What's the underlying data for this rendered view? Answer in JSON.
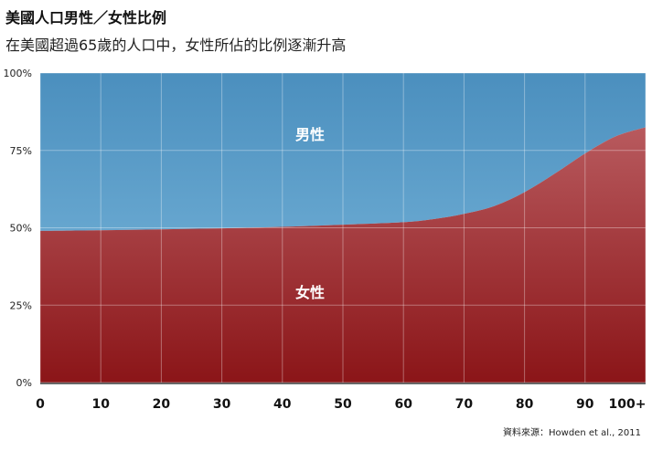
{
  "header": {
    "title": "美國人口男性／女性比例",
    "subtitle": "在美國超過65歲的人口中，女性所佔的比例逐漸升高"
  },
  "source": "資料來源：Howden et al., 2011",
  "colors": {
    "male_top": "#4b8fbe",
    "male_bottom": "#66a6cf",
    "female_top": "#b85a5e",
    "female_bottom": "#8b1518",
    "grid": "#ffffff"
  },
  "chart_data": {
    "type": "area",
    "stacked": true,
    "x_ticks": [
      "0",
      "10",
      "20",
      "30",
      "40",
      "50",
      "60",
      "70",
      "80",
      "90",
      "100+"
    ],
    "x": [
      0,
      10,
      20,
      30,
      40,
      50,
      60,
      65,
      70,
      75,
      80,
      85,
      90,
      95,
      100
    ],
    "y_ticks": [
      "0%",
      "25%",
      "50%",
      "75%",
      "100%"
    ],
    "ylim": [
      0,
      100
    ],
    "series": [
      {
        "name": "女性",
        "values": [
          49.0,
          49.2,
          49.5,
          49.8,
          50.3,
          51.0,
          51.8,
          52.8,
          54.5,
          57.0,
          61.5,
          67.5,
          74.0,
          79.5,
          82.5
        ]
      },
      {
        "name": "男性",
        "values": [
          51.0,
          50.8,
          50.5,
          50.2,
          49.7,
          49.0,
          48.2,
          47.2,
          45.5,
          43.0,
          38.5,
          32.5,
          26.0,
          20.5,
          17.5
        ]
      }
    ],
    "grid": true
  }
}
